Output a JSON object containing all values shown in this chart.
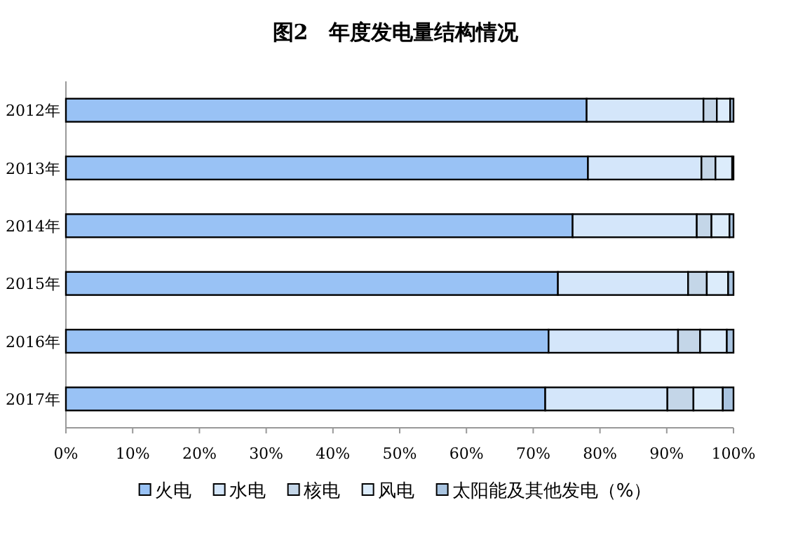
{
  "chart_data": {
    "type": "bar",
    "orientation": "horizontal",
    "stacked": true,
    "title": "图2　年度发电量结构情况",
    "categories": [
      "2012年",
      "2013年",
      "2014年",
      "2015年",
      "2016年",
      "2017年"
    ],
    "series": [
      {
        "name": "火电",
        "color": "#99c2f5",
        "values": [
          78.0,
          78.2,
          75.9,
          73.7,
          72.3,
          71.8
        ]
      },
      {
        "name": "水电",
        "color": "#d4e6fa",
        "values": [
          17.5,
          17.0,
          18.6,
          19.5,
          19.4,
          18.3
        ]
      },
      {
        "name": "核电",
        "color": "#c4d6e8",
        "values": [
          2.0,
          2.1,
          2.2,
          2.8,
          3.3,
          3.9
        ]
      },
      {
        "name": "风电",
        "color": "#dcecfb",
        "values": [
          2.0,
          2.5,
          2.7,
          3.2,
          4.0,
          4.4
        ]
      },
      {
        "name": "太阳能及其他发电（%）",
        "color": "#a9c4e0",
        "values": [
          0.5,
          0.2,
          0.6,
          0.8,
          1.0,
          1.6
        ]
      }
    ],
    "xlim": [
      0,
      100
    ],
    "xticks": [
      {
        "value": 0,
        "label": "0%"
      },
      {
        "value": 10,
        "label": "10%"
      },
      {
        "value": 20,
        "label": "20%"
      },
      {
        "value": 30,
        "label": "30%"
      },
      {
        "value": 40,
        "label": "40%"
      },
      {
        "value": 50,
        "label": "50%"
      },
      {
        "value": 60,
        "label": "60%"
      },
      {
        "value": 70,
        "label": "70%"
      },
      {
        "value": 80,
        "label": "80%"
      },
      {
        "value": 90,
        "label": "90%"
      },
      {
        "value": 100,
        "label": "100%"
      }
    ],
    "legend": "bottom"
  }
}
